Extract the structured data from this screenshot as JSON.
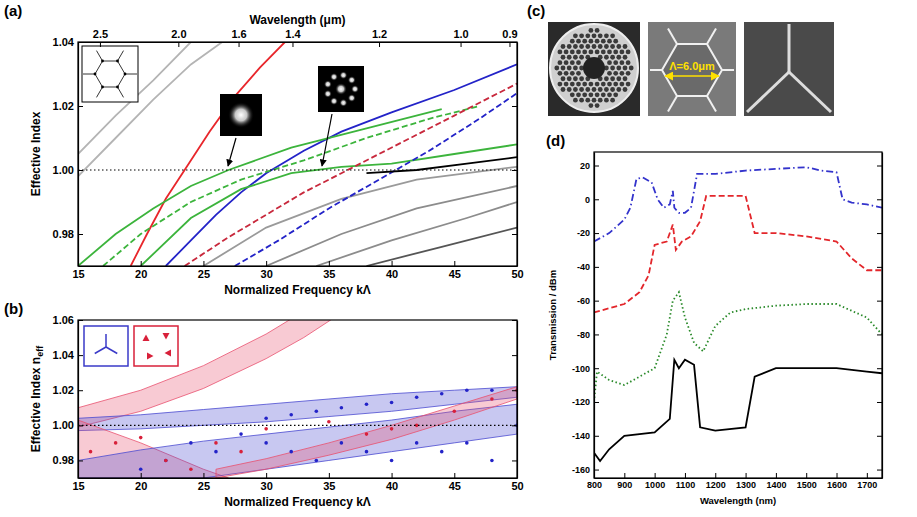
{
  "chart_data": [
    {
      "panel": "(a)",
      "type": "line",
      "x_label": "Normalized Frequency kΛ",
      "y_label": "Effective Index",
      "x2_label": "Wavelength (μm)",
      "xlim": [
        15,
        50
      ],
      "xticks": [
        15,
        20,
        25,
        30,
        35,
        40,
        45,
        50
      ],
      "x2ticks": [
        {
          "value": 16.75,
          "label": "2.5"
        },
        {
          "value": 23.0,
          "label": "2.0"
        },
        {
          "value": 27.8,
          "label": "1.6"
        },
        {
          "value": 32.1,
          "label": "1.4"
        },
        {
          "value": 39.0,
          "label": "1.2"
        },
        {
          "value": 45.5,
          "label": "1.0"
        },
        {
          "value": 49.4,
          "label": "0.9"
        }
      ],
      "ylim": [
        0.97,
        1.04
      ],
      "yticks": [
        0.98,
        {
          "value": 1.0,
          "label": "1.00"
        },
        1.02,
        1.04
      ],
      "reference_y": 1.0,
      "series": [
        {
          "color": "#b4b4b4",
          "line_style": "solid",
          "x": [
            15,
            18,
            21,
            24,
            26.5
          ],
          "values": [
            0.998,
            1.01,
            1.022,
            1.033,
            1.04
          ]
        },
        {
          "color": "#b4b4b4",
          "line_style": "solid",
          "x": [
            15,
            18,
            21,
            24
          ],
          "values": [
            1.005,
            1.017,
            1.028,
            1.04
          ]
        },
        {
          "color": "#8c8c8c",
          "line_style": "solid",
          "x": [
            30,
            36,
            42,
            50
          ],
          "values": [
            0.97,
            0.98,
            0.988,
            0.995
          ]
        },
        {
          "color": "#8c8c8c",
          "line_style": "solid",
          "x": [
            34,
            40,
            46,
            50
          ],
          "values": [
            0.97,
            0.978,
            0.985,
            0.99
          ]
        },
        {
          "color": "#555555",
          "line_style": "solid",
          "x": [
            38,
            44,
            50
          ],
          "values": [
            0.97,
            0.976,
            0.982
          ]
        },
        {
          "color": "#9a9a9a",
          "line_style": "solid",
          "x": [
            25,
            30,
            36,
            42,
            50
          ],
          "values": [
            0.97,
            0.982,
            0.991,
            0.997,
            1.001
          ]
        },
        {
          "color": "#e8262b",
          "line_style": "solid",
          "x": [
            19.2,
            20.5,
            22,
            23.5,
            25.5,
            27.5,
            29.5,
            31.5
          ],
          "values": [
            0.97,
            0.98,
            0.991,
            1.0,
            1.012,
            1.023,
            1.032,
            1.04
          ]
        },
        {
          "color": "#2323c8",
          "line_style": "solid",
          "x": [
            22,
            24,
            26,
            28,
            30,
            33,
            36,
            40,
            45,
            50
          ],
          "values": [
            0.97,
            0.978,
            0.986,
            0.993,
            0.999,
            1.006,
            1.012,
            1.018,
            1.025,
            1.033
          ]
        },
        {
          "color": "#3cb43c",
          "line_style": "solid",
          "x": [
            15,
            18,
            21,
            24,
            27,
            32,
            38,
            44
          ],
          "values": [
            0.97,
            0.98,
            0.988,
            0.995,
            1.0,
            1.007,
            1.013,
            1.019
          ]
        },
        {
          "color": "#3cb43c",
          "line_style": "solid",
          "x": [
            20,
            24,
            28,
            32,
            36,
            40,
            45,
            50
          ],
          "values": [
            0.97,
            0.985,
            0.994,
            0.999,
            1.001,
            1.002,
            1.005,
            1.008
          ]
        },
        {
          "color": "#3cb43c",
          "line_style": "dashed",
          "x": [
            17,
            20,
            24,
            28,
            33,
            38,
            43,
            47
          ],
          "values": [
            0.97,
            0.98,
            0.99,
            0.997,
            1.003,
            1.01,
            1.016,
            1.02
          ]
        },
        {
          "color": "#c8283c",
          "line_style": "dashed",
          "x": [
            23.5,
            27,
            30,
            33,
            36,
            39,
            42,
            45,
            48,
            50
          ],
          "values": [
            0.97,
            0.979,
            0.986,
            0.993,
            0.999,
            1.005,
            1.011,
            1.017,
            1.023,
            1.027
          ]
        },
        {
          "color": "#2323c8",
          "line_style": "dashed",
          "x": [
            27.5,
            31,
            35,
            39,
            43,
            47,
            50
          ],
          "values": [
            0.97,
            0.978,
            0.988,
            0.997,
            1.006,
            1.016,
            1.024
          ]
        },
        {
          "color": "#000000",
          "line_style": "solid",
          "x": [
            38,
            42,
            46,
            50
          ],
          "values": [
            0.999,
            1.0,
            1.002,
            1.004
          ]
        }
      ]
    },
    {
      "panel": "(b)",
      "type": "line",
      "x_label": "Normalized Frequency kΛ",
      "y_label": "Effective Index n",
      "y_label_sub": "eff",
      "xlim": [
        15,
        50
      ],
      "xticks": [
        15,
        20,
        25,
        30,
        35,
        40,
        45,
        50
      ],
      "ylim": [
        0.97,
        1.06
      ],
      "yticks": [
        0.98,
        {
          "value": 1.0,
          "label": "1.00"
        },
        1.02,
        1.04,
        1.06
      ],
      "reference_y": 1.0,
      "series": [
        {
          "type": "area",
          "color": "#e8506e",
          "x": [
            15,
            20,
            25,
            30,
            33,
            36
          ],
          "lower": [
            0.999,
            1.008,
            1.021,
            1.038,
            1.05,
            1.064
          ],
          "upper": [
            1.01,
            1.02,
            1.034,
            1.052,
            1.065,
            1.08
          ]
        },
        {
          "type": "area",
          "color": "#4a4ad0",
          "x": [
            15,
            20,
            25,
            30,
            35,
            40,
            45,
            50
          ],
          "lower": [
            0.997,
            0.998,
            1.0,
            1.002,
            1.005,
            1.008,
            1.012,
            1.016
          ],
          "upper": [
            1.004,
            1.006,
            1.009,
            1.012,
            1.015,
            1.018,
            1.02,
            1.022
          ]
        },
        {
          "type": "area",
          "color": "#e8506e",
          "x": [
            15,
            20,
            25,
            27
          ],
          "lower": [
            0.97,
            0.97,
            0.97,
            0.97
          ],
          "upper": [
            1.003,
            0.99,
            0.975,
            0.97
          ]
        },
        {
          "type": "area",
          "color": "#4a4ad0",
          "x": [
            15,
            20,
            25,
            30,
            35,
            40,
            45,
            50
          ],
          "lower": [
            0.97,
            0.97,
            0.97,
            0.975,
            0.98,
            0.985,
            0.99,
            0.995
          ],
          "upper": [
            0.98,
            0.986,
            0.991,
            0.995,
            0.999,
            1.003,
            1.008,
            1.012
          ]
        },
        {
          "type": "area",
          "color": "#e8506e",
          "x": [
            26,
            30,
            35,
            40,
            45,
            50
          ],
          "lower": [
            0.97,
            0.975,
            0.983,
            0.992,
            1.003,
            1.015
          ],
          "upper": [
            0.975,
            0.981,
            0.99,
            1.0,
            1.011,
            1.022
          ]
        },
        {
          "type": "scatter",
          "color": "#2323c8",
          "marker": "dot",
          "x": [
            20,
            22,
            24,
            26,
            28,
            30,
            30,
            32,
            32,
            34,
            34,
            36,
            36,
            38,
            38,
            40,
            40,
            42,
            42,
            44,
            44,
            46,
            46,
            48,
            48,
            50
          ],
          "values": [
            0.975,
            0.98,
            0.99,
            0.985,
            0.995,
            0.99,
            1.004,
            0.985,
            1.006,
            0.98,
            1.008,
            0.99,
            1.01,
            0.985,
            1.012,
            0.98,
            1.013,
            0.99,
            1.016,
            0.985,
            1.018,
            0.99,
            1.02,
            0.98,
            1.02,
            1.0
          ]
        },
        {
          "type": "scatter",
          "color": "#d8203a",
          "marker": "dot",
          "x": [
            16,
            18,
            20,
            22,
            24,
            26,
            28,
            30,
            35,
            38,
            40,
            42,
            45,
            48,
            50
          ],
          "values": [
            0.985,
            0.99,
            0.993,
            0.98,
            0.975,
            0.99,
            0.985,
            0.998,
            1.002,
            0.995,
            0.998,
            1.0,
            1.008,
            1.015,
            1.02
          ]
        }
      ]
    },
    {
      "panel": "(c)",
      "type": "image",
      "annotation": "Λ=6.0μm"
    },
    {
      "panel": "(d)",
      "type": "line",
      "x_label": "Wavelength (nm)",
      "y_label": "Transmission / dBm",
      "xlim": [
        800,
        1750
      ],
      "xticks": [
        800,
        900,
        1000,
        1100,
        1200,
        1300,
        1400,
        1500,
        1600,
        1700
      ],
      "ylim": [
        -165,
        28
      ],
      "yticks": [
        20,
        0,
        -20,
        -40,
        -60,
        -80,
        -100,
        -120,
        -140,
        -160
      ],
      "series": [
        {
          "color": "#3333cc",
          "line_style": "dashdot",
          "x": [
            800,
            850,
            900,
            920,
            940,
            960,
            990,
            1010,
            1030,
            1050,
            1060,
            1065,
            1080,
            1100,
            1120,
            1140,
            1200,
            1300,
            1400,
            1500,
            1550,
            1600,
            1620,
            1650,
            1700,
            1750
          ],
          "values": [
            -25,
            -20,
            -12,
            -5,
            12,
            13,
            10,
            0,
            -5,
            -3,
            5,
            -5,
            -8,
            -8,
            -5,
            15,
            15,
            17,
            18,
            19,
            17,
            16,
            0,
            -2,
            -3,
            -5
          ]
        },
        {
          "color": "#e3262b",
          "line_style": "dashed",
          "x": [
            800,
            900,
            950,
            980,
            1000,
            1040,
            1060,
            1070,
            1090,
            1120,
            1150,
            1170,
            1300,
            1330,
            1400,
            1500,
            1600,
            1650,
            1700,
            1750
          ],
          "values": [
            -67,
            -62,
            -55,
            -45,
            -27,
            -25,
            -15,
            -30,
            -25,
            -22,
            -13,
            2,
            2,
            -20,
            -20,
            -22,
            -25,
            -35,
            -42,
            -42
          ]
        },
        {
          "color": "#2a8a2a",
          "line_style": "dotted",
          "x": [
            800,
            810,
            850,
            900,
            1000,
            1040,
            1060,
            1080,
            1100,
            1130,
            1160,
            1200,
            1250,
            1300,
            1400,
            1500,
            1600,
            1700,
            1750
          ],
          "values": [
            -120,
            -102,
            -107,
            -110,
            -100,
            -80,
            -60,
            -55,
            -70,
            -85,
            -90,
            -75,
            -67,
            -65,
            -63,
            -62,
            -62,
            -70,
            -80
          ]
        },
        {
          "color": "#000000",
          "line_style": "solid",
          "x": [
            800,
            820,
            850,
            900,
            1000,
            1050,
            1065,
            1080,
            1100,
            1130,
            1150,
            1200,
            1300,
            1330,
            1400,
            1500,
            1600,
            1700,
            1750
          ],
          "values": [
            -150,
            -155,
            -148,
            -140,
            -138,
            -130,
            -95,
            -100,
            -95,
            -98,
            -135,
            -137,
            -135,
            -105,
            -100,
            -100,
            -100,
            -102,
            -103
          ]
        }
      ]
    }
  ]
}
